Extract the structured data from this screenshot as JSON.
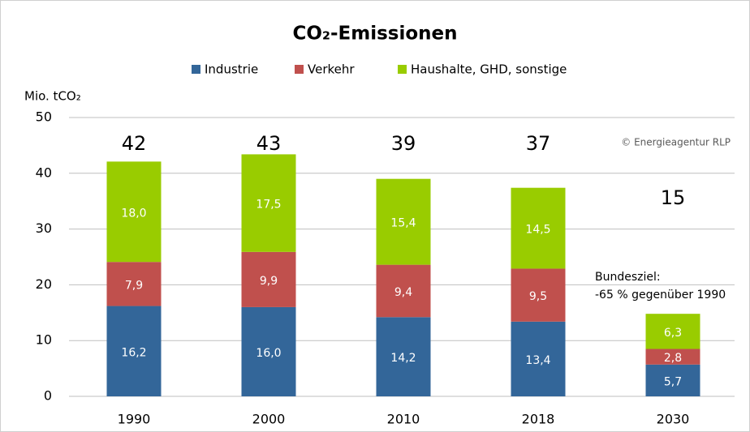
{
  "chart_data": {
    "type": "stacked_bar",
    "title": "CO₂-Emissionen",
    "y_label": "Mio. tCO₂",
    "categories": [
      "1990",
      "2000",
      "2010",
      "2018",
      "2030"
    ],
    "series": [
      {
        "name": "Industrie",
        "color": "#336699",
        "values": [
          16.2,
          16.0,
          14.2,
          13.4,
          5.7
        ],
        "value_labels": [
          "16,2",
          "16,0",
          "14,2",
          "13,4",
          "5,7"
        ]
      },
      {
        "name": "Verkehr",
        "color": "#c0504d",
        "values": [
          7.9,
          9.9,
          9.4,
          9.5,
          2.8
        ],
        "value_labels": [
          "7,9",
          "9,9",
          "9,4",
          "9,5",
          "2,8"
        ]
      },
      {
        "name": "Haushalte, GHD, sonstige",
        "color": "#99cc00",
        "values": [
          18.0,
          17.5,
          15.4,
          14.5,
          6.3
        ],
        "value_labels": [
          "18,0",
          "17,5",
          "15,4",
          "14,5",
          "6,3"
        ]
      }
    ],
    "totals": [
      42,
      43,
      39,
      37,
      15
    ],
    "annotations": [
      "Bundesziel:",
      "-65 % gegenüber 1990"
    ],
    "source": "© Energieagentur RLP",
    "ylim": [
      0,
      50
    ],
    "yticks": [
      0,
      10,
      20,
      30,
      40,
      50
    ],
    "grid": true
  }
}
